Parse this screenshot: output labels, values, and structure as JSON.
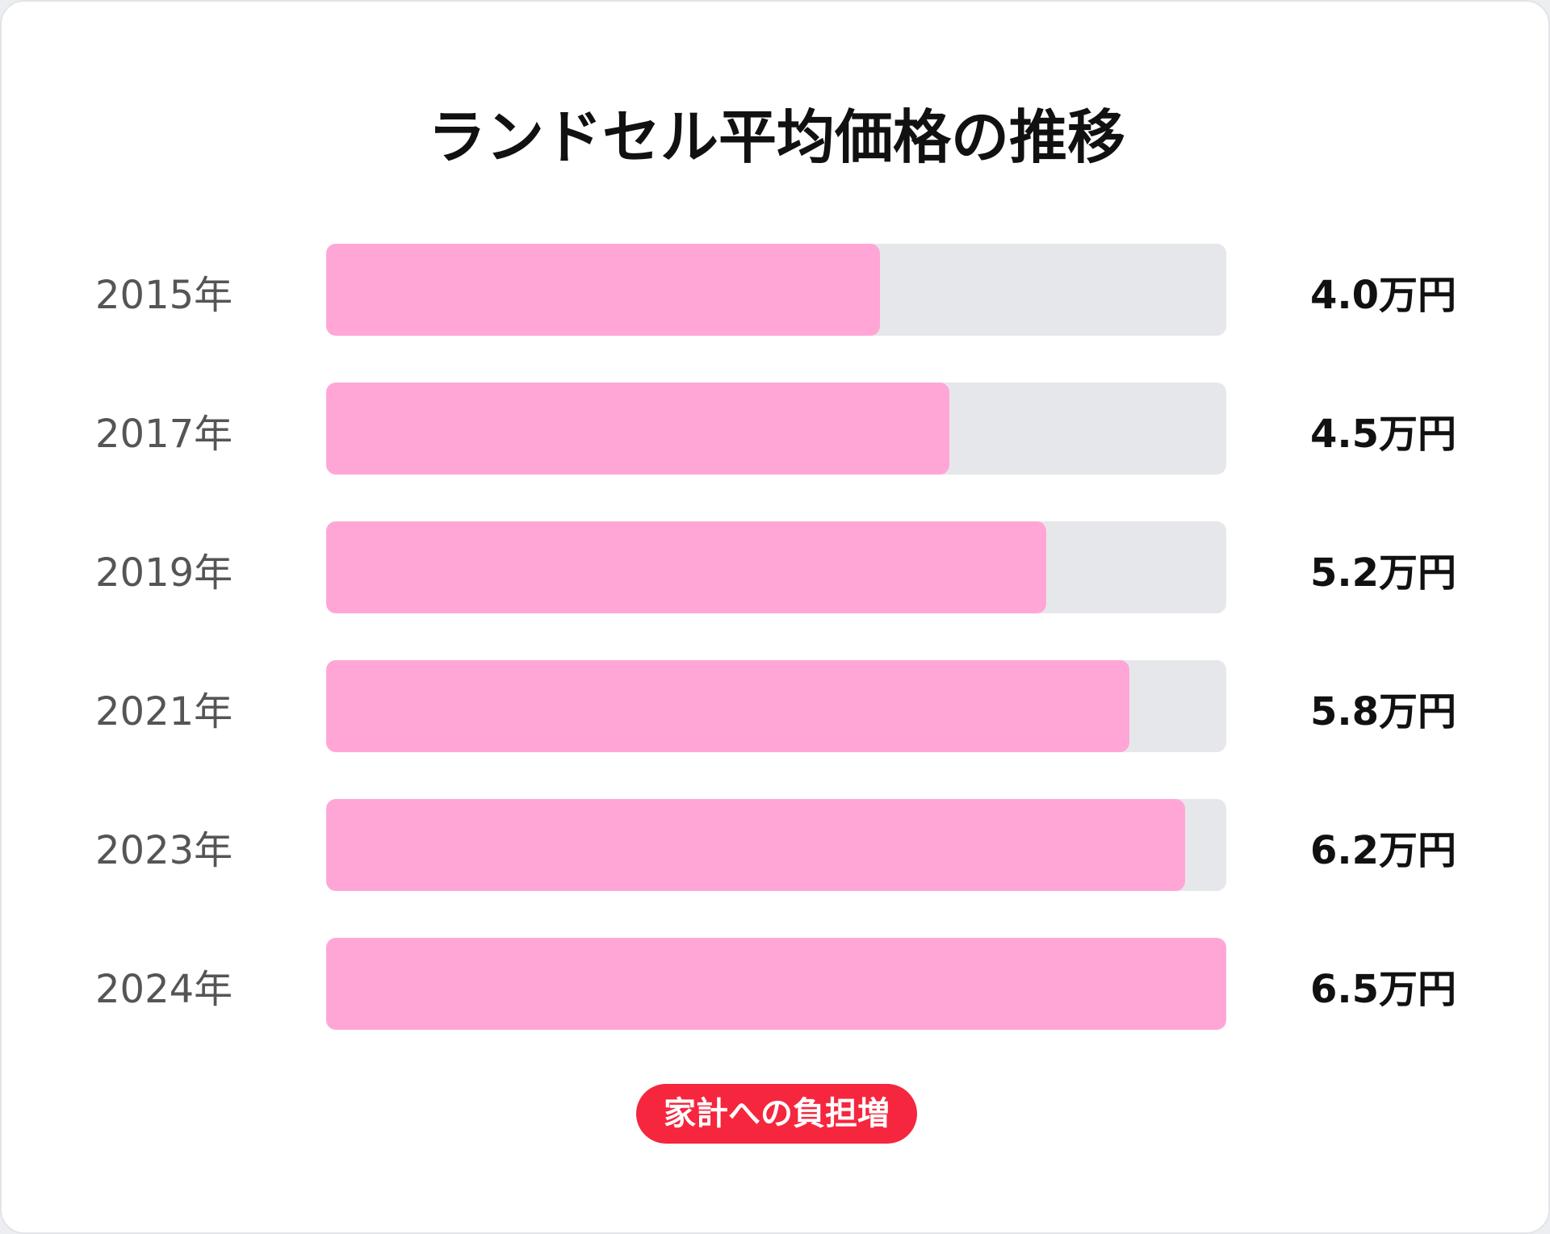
{
  "chart_data": {
    "type": "bar",
    "orientation": "horizontal",
    "title": "ランドセル平均価格の推移",
    "categories": [
      "2015年",
      "2017年",
      "2019年",
      "2021年",
      "2023年",
      "2024年"
    ],
    "values": [
      4.0,
      4.5,
      5.2,
      5.8,
      6.2,
      6.5
    ],
    "value_labels": [
      "4.0万円",
      "4.5万円",
      "5.2万円",
      "5.8万円",
      "6.2万円",
      "6.5万円"
    ],
    "xlim": [
      0,
      6.5
    ],
    "grid": false
  },
  "badge": {
    "label": "家計への負担増"
  },
  "colors": {
    "bar_fill": "#ffa6d7",
    "track": "#e6e7ea",
    "badge": "#f5263d"
  }
}
